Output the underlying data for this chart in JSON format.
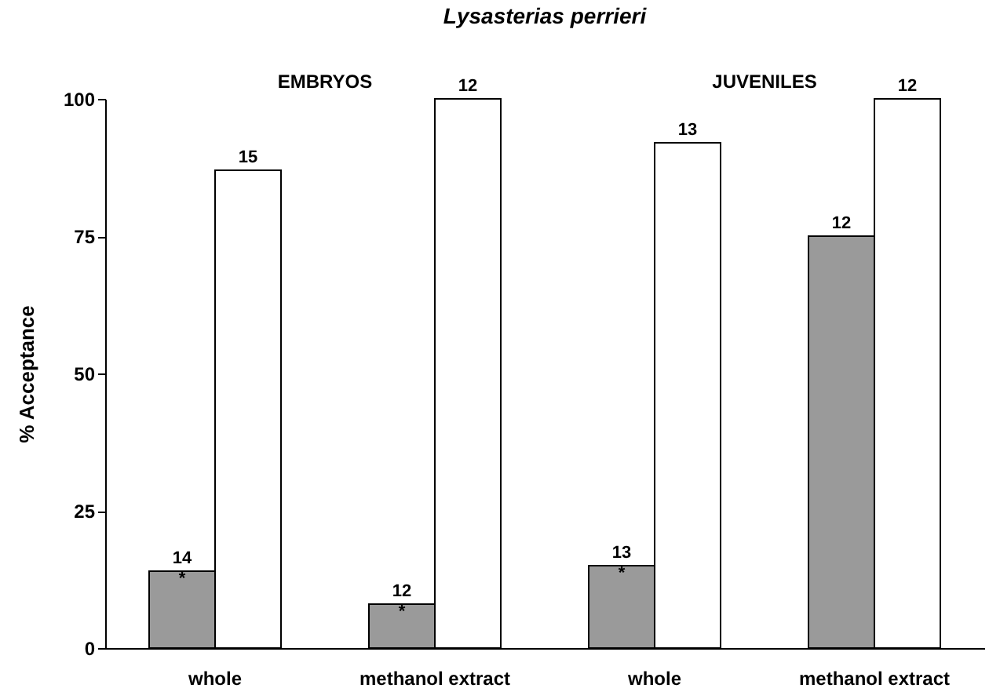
{
  "chart_data": {
    "type": "bar",
    "title": "Lysasterias perrieri",
    "ylabel": "% Acceptance",
    "categories": [
      "whole",
      "methanol extract",
      "whole",
      "methanol extract"
    ],
    "series": [
      {
        "color": "#9a9a9a",
        "values": [
          14,
          8,
          15,
          75
        ]
      },
      {
        "color": "#ffffff",
        "values": [
          87,
          100,
          92,
          100
        ]
      }
    ],
    "ylim": [
      0,
      100
    ],
    "yticks": [
      0,
      25,
      50,
      75,
      100
    ],
    "grid": false,
    "annotations": [
      "EMBRYOS",
      "JUVENILES",
      "14\n*",
      "15",
      "12\n*",
      "12",
      "13\n*",
      "13",
      "12",
      "12"
    ]
  }
}
